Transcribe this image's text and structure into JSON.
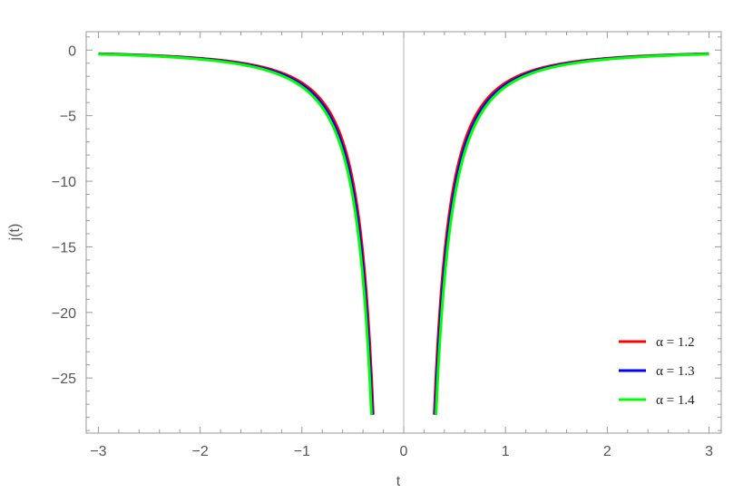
{
  "chart_data": {
    "type": "line",
    "xlabel": "t",
    "ylabel": "j(t)",
    "xlim": [
      -3.12,
      3.12
    ],
    "ylim": [
      -29.2,
      1.4
    ],
    "x_ticks": [
      -3,
      -2,
      -1,
      0,
      1,
      2,
      3
    ],
    "x_tick_labels": [
      "−3",
      "−2",
      "−1",
      "0",
      "1",
      "2",
      "3"
    ],
    "y_ticks": [
      0,
      -5,
      -10,
      -15,
      -20,
      -25
    ],
    "y_tick_labels": [
      "0",
      "−5",
      "−10",
      "−15",
      "−20",
      "−25"
    ],
    "clip_y": -27.8,
    "grid": false,
    "legend_position": "bottom-right",
    "series": [
      {
        "name": "α = 1.2",
        "color": "#ff0000",
        "k": -2.5,
        "t_min": 0.3
      },
      {
        "name": "α = 1.3",
        "color": "#0000ff",
        "k": -2.65,
        "t_min": 0.31
      },
      {
        "name": "α = 1.4",
        "color": "#00ff00",
        "k": -2.8,
        "t_min": 0.32
      }
    ]
  }
}
